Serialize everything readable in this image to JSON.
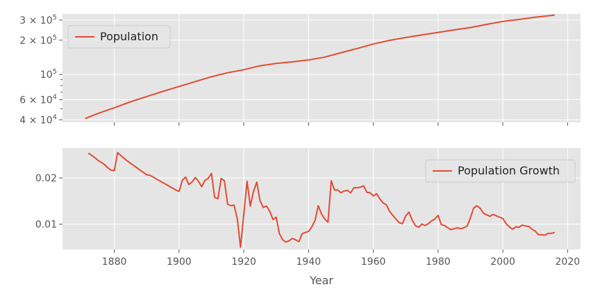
{
  "chart_data": [
    {
      "type": "line",
      "yscale": "log",
      "ylim": [
        38000,
        340000
      ],
      "xlim": [
        1864,
        2024
      ],
      "grid": true,
      "legend_position": "top-left",
      "y_tick_labels": [
        {
          "value": 300000,
          "base": "3 × 10",
          "exp": "5"
        },
        {
          "value": 200000,
          "base": "2 × 10",
          "exp": "5"
        },
        {
          "value": 100000,
          "base": "10",
          "exp": "5"
        },
        {
          "value": 60000,
          "base": "6 × 10",
          "exp": "4"
        },
        {
          "value": 40000,
          "base": "4 × 10",
          "exp": "4"
        }
      ],
      "y_minor_ticks": [
        50000,
        70000,
        80000,
        90000
      ],
      "series": [
        {
          "name": "Population",
          "color": "#e24a33",
          "x": [
            1871,
            1875,
            1880,
            1885,
            1890,
            1895,
            1900,
            1905,
            1910,
            1915,
            1920,
            1925,
            1930,
            1935,
            1940,
            1945,
            1950,
            1955,
            1960,
            1965,
            1970,
            1975,
            1980,
            1985,
            1990,
            1995,
            2000,
            2005,
            2010,
            2016
          ],
          "values": [
            41000,
            45500,
            51000,
            57500,
            64000,
            71000,
            78500,
            86500,
            95500,
            103500,
            110000,
            119000,
            125000,
            129000,
            134000,
            142000,
            155000,
            169000,
            185000,
            199000,
            211000,
            222000,
            234000,
            246000,
            258000,
            275000,
            292000,
            304000,
            318000,
            332000
          ]
        }
      ]
    },
    {
      "type": "line",
      "ylim": [
        0.0045,
        0.0265
      ],
      "xlim": [
        1864,
        2024
      ],
      "xlabel": "Year",
      "grid": true,
      "legend_position": "top-right",
      "x_ticks": [
        1880,
        1900,
        1920,
        1940,
        1960,
        1980,
        2000,
        2020
      ],
      "y_ticks": [
        0.01,
        0.02
      ],
      "series": [
        {
          "name": "Population Growth",
          "color": "#e24a33",
          "x": [
            1872,
            1873,
            1874,
            1875,
            1876,
            1877,
            1878,
            1879,
            1880,
            1881,
            1882,
            1883,
            1884,
            1885,
            1886,
            1887,
            1888,
            1889,
            1890,
            1891,
            1892,
            1893,
            1894,
            1895,
            1896,
            1897,
            1898,
            1899,
            1900,
            1901,
            1902,
            1903,
            1904,
            1905,
            1906,
            1907,
            1908,
            1909,
            1910,
            1911,
            1912,
            1913,
            1914,
            1915,
            1916,
            1917,
            1918,
            1919,
            1920,
            1921,
            1922,
            1923,
            1924,
            1925,
            1926,
            1927,
            1928,
            1929,
            1930,
            1931,
            1932,
            1933,
            1934,
            1935,
            1936,
            1937,
            1938,
            1939,
            1940,
            1941,
            1942,
            1943,
            1944,
            1945,
            1946,
            1947,
            1948,
            1949,
            1950,
            1951,
            1952,
            1953,
            1954,
            1955,
            1956,
            1957,
            1958,
            1959,
            1960,
            1961,
            1962,
            1963,
            1964,
            1965,
            1966,
            1967,
            1968,
            1969,
            1970,
            1971,
            1972,
            1973,
            1974,
            1975,
            1976,
            1977,
            1978,
            1979,
            1980,
            1981,
            1982,
            1983,
            1984,
            1985,
            1986,
            1987,
            1988,
            1989,
            1990,
            1991,
            1992,
            1993,
            1994,
            1995,
            1996,
            1997,
            1998,
            1999,
            2000,
            2001,
            2002,
            2003,
            2004,
            2005,
            2006,
            2007,
            2008,
            2009,
            2010,
            2011,
            2012,
            2013,
            2014,
            2015,
            2016
          ],
          "values": [
            0.0254,
            0.0249,
            0.0244,
            0.0238,
            0.0234,
            0.0229,
            0.0222,
            0.0217,
            0.0216,
            0.0255,
            0.0249,
            0.0243,
            0.0237,
            0.0232,
            0.0227,
            0.0222,
            0.0217,
            0.0212,
            0.0207,
            0.0206,
            0.0202,
            0.0198,
            0.0194,
            0.019,
            0.0186,
            0.0182,
            0.0178,
            0.0174,
            0.0171,
            0.0195,
            0.0202,
            0.0186,
            0.0191,
            0.0201,
            0.0193,
            0.0181,
            0.0195,
            0.0199,
            0.021,
            0.0158,
            0.0155,
            0.0199,
            0.0194,
            0.0143,
            0.014,
            0.0141,
            0.0111,
            0.005,
            0.0122,
            0.0193,
            0.0139,
            0.0171,
            0.0191,
            0.0151,
            0.0136,
            0.0139,
            0.0128,
            0.011,
            0.0115,
            0.0079,
            0.0066,
            0.0061,
            0.0064,
            0.0069,
            0.0066,
            0.0062,
            0.0079,
            0.0082,
            0.0084,
            0.0094,
            0.0108,
            0.014,
            0.0122,
            0.0111,
            0.0104,
            0.0194,
            0.0174,
            0.0174,
            0.0168,
            0.0172,
            0.0173,
            0.0168,
            0.0179,
            0.0179,
            0.018,
            0.0183,
            0.0169,
            0.0168,
            0.0161,
            0.0166,
            0.0155,
            0.0146,
            0.0142,
            0.0128,
            0.0119,
            0.0111,
            0.0103,
            0.0101,
            0.0118,
            0.0126,
            0.0109,
            0.0097,
            0.0093,
            0.01,
            0.0097,
            0.0101,
            0.0107,
            0.0111,
            0.0119,
            0.0099,
            0.0097,
            0.0092,
            0.0088,
            0.009,
            0.0092,
            0.009,
            0.0092,
            0.0096,
            0.0114,
            0.0135,
            0.014,
            0.0134,
            0.0124,
            0.012,
            0.0117,
            0.0121,
            0.0118,
            0.0115,
            0.0112,
            0.0101,
            0.0094,
            0.0089,
            0.0094,
            0.0093,
            0.0098,
            0.0096,
            0.0095,
            0.0089,
            0.0085,
            0.0077,
            0.0077,
            0.0076,
            0.008,
            0.008,
            0.0082
          ]
        }
      ]
    }
  ]
}
